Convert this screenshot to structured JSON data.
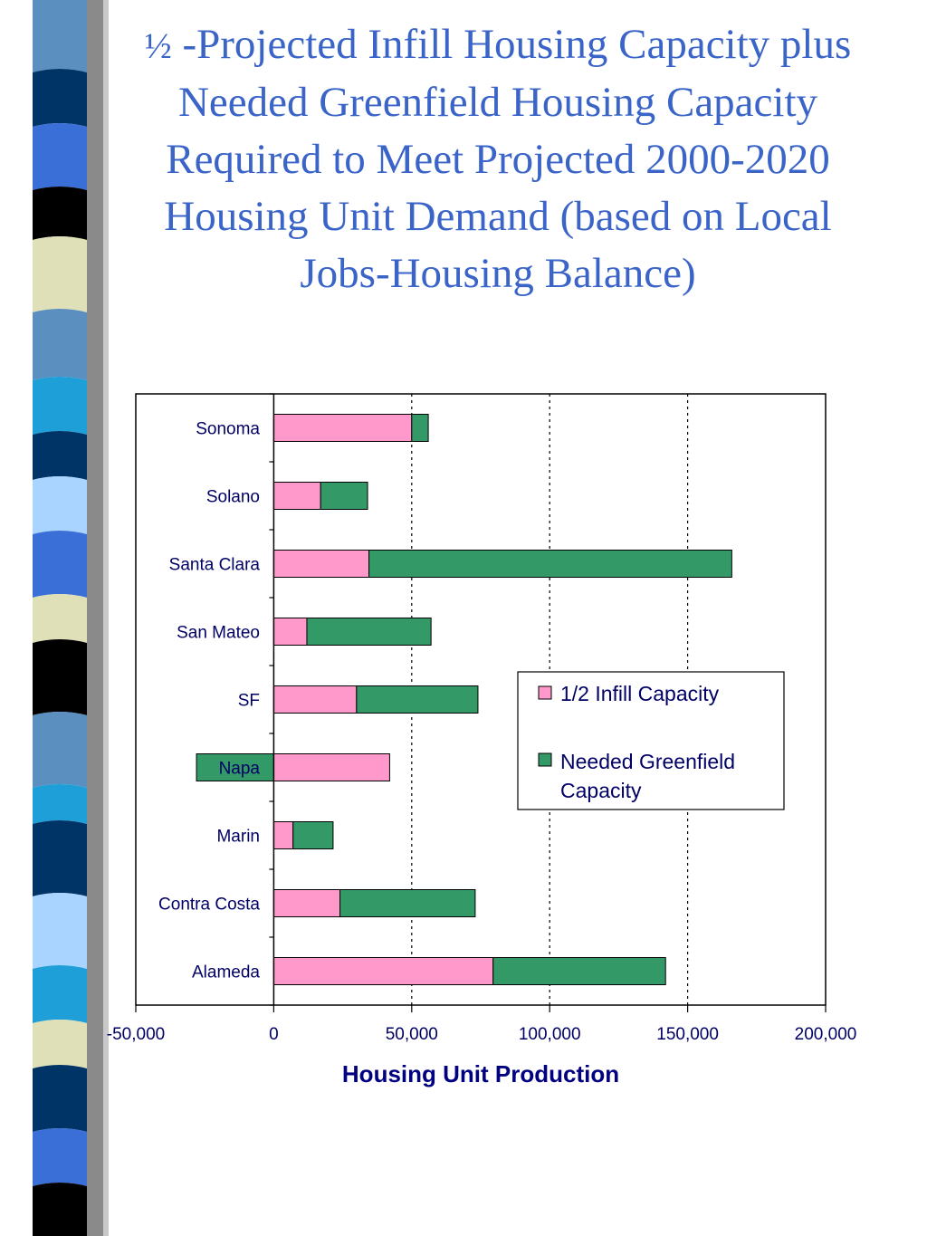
{
  "slide": {
    "title_prefix": "½",
    "title_text": " -Projected Infill Housing Capacity plus Needed Greenfield Housing Capacity Required to Meet Projected 2000-2020 Housing Unit Demand (based on Local Jobs-Housing Balance)"
  },
  "colors": {
    "infill": "#ff99cc",
    "greenfield": "#339966",
    "title": "#3a64c8",
    "text": "#000066"
  },
  "chart_data": {
    "type": "bar",
    "orientation": "horizontal",
    "stacked": true,
    "categories": [
      "Sonoma",
      "Solano",
      "Santa Clara",
      "San Mateo",
      "SF",
      "Napa",
      "Marin",
      "Contra Costa",
      "Alameda"
    ],
    "series": [
      {
        "name": "1/2 Infill Capacity",
        "values": [
          50000,
          17000,
          34500,
          12000,
          30000,
          42000,
          7000,
          24000,
          79500
        ]
      },
      {
        "name": "Needed Greenfield Capacity",
        "values": [
          6000,
          17000,
          131500,
          45000,
          44000,
          -28000,
          14500,
          49000,
          62500
        ]
      }
    ],
    "xlabel": "Housing Unit Production",
    "ylabel": "",
    "xlim": [
      -50000,
      200000
    ],
    "ticks": [
      "-50,000",
      "0",
      "50,000",
      "100,000",
      "150,000",
      "200,000"
    ],
    "tick_values": [
      -50000,
      0,
      50000,
      100000,
      150000,
      200000
    ],
    "grid": "vertical dotted",
    "legend": "right-center"
  }
}
